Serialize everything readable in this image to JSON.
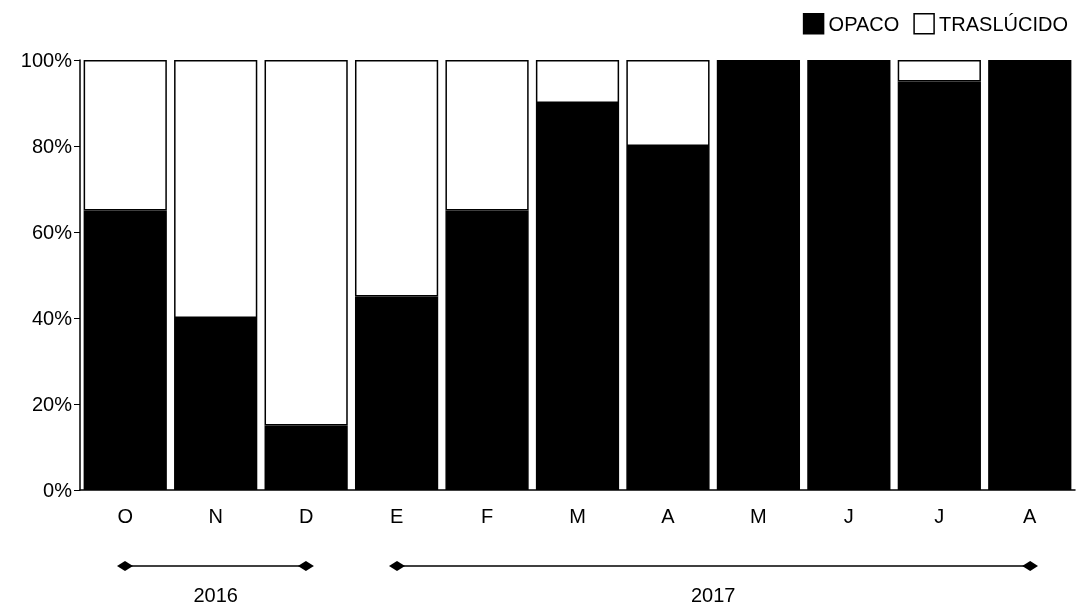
{
  "chart_data": {
    "type": "bar",
    "stacked": true,
    "categories": [
      "O",
      "N",
      "D",
      "E",
      "F",
      "M",
      "A",
      "M",
      "J",
      "J",
      "A"
    ],
    "series": [
      {
        "name": "OPACO",
        "color": "#000000",
        "values": [
          65,
          40,
          15,
          45,
          65,
          90,
          80,
          100,
          100,
          95,
          100
        ]
      },
      {
        "name": "TRASLÚCIDO",
        "color": "#ffffff",
        "values": [
          35,
          60,
          85,
          55,
          35,
          10,
          20,
          0,
          0,
          5,
          0
        ]
      }
    ],
    "ylim": [
      0,
      100
    ],
    "yticks": [
      {
        "value": 0,
        "label": "0%"
      },
      {
        "value": 20,
        "label": "20%"
      },
      {
        "value": 40,
        "label": "40%"
      },
      {
        "value": 60,
        "label": "60%"
      },
      {
        "value": 80,
        "label": "80%"
      },
      {
        "value": 100,
        "label": "100%"
      }
    ],
    "grid": false,
    "legend": "top right",
    "annotations": [
      "2016",
      "2017"
    ]
  }
}
